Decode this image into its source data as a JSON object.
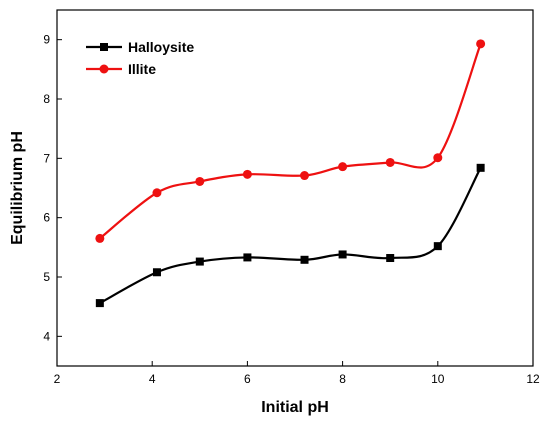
{
  "chart_data": {
    "type": "line",
    "xlabel": "Initial pH",
    "ylabel": "Equilibrium pH",
    "xlim": [
      2,
      12
    ],
    "ylim": [
      3.5,
      9.5
    ],
    "x_ticks": [
      2,
      4,
      6,
      8,
      10,
      12
    ],
    "y_ticks": [
      4,
      5,
      6,
      7,
      8,
      9
    ],
    "grid": false,
    "legend_position": "top-left",
    "series": [
      {
        "name": "Halloysite",
        "color": "#000000",
        "marker": "square",
        "x": [
          2.9,
          4.1,
          5.0,
          6.0,
          7.2,
          8.0,
          9.0,
          10.0,
          10.9
        ],
        "y": [
          4.56,
          5.08,
          5.26,
          5.33,
          5.29,
          5.38,
          5.32,
          5.52,
          6.84
        ]
      },
      {
        "name": "Illite",
        "color": "#ee1111",
        "marker": "circle",
        "x": [
          2.9,
          4.1,
          5.0,
          6.0,
          7.2,
          8.0,
          9.0,
          10.0,
          10.9
        ],
        "y": [
          5.65,
          6.42,
          6.61,
          6.73,
          6.71,
          6.86,
          6.93,
          7.01,
          8.93
        ]
      }
    ]
  }
}
